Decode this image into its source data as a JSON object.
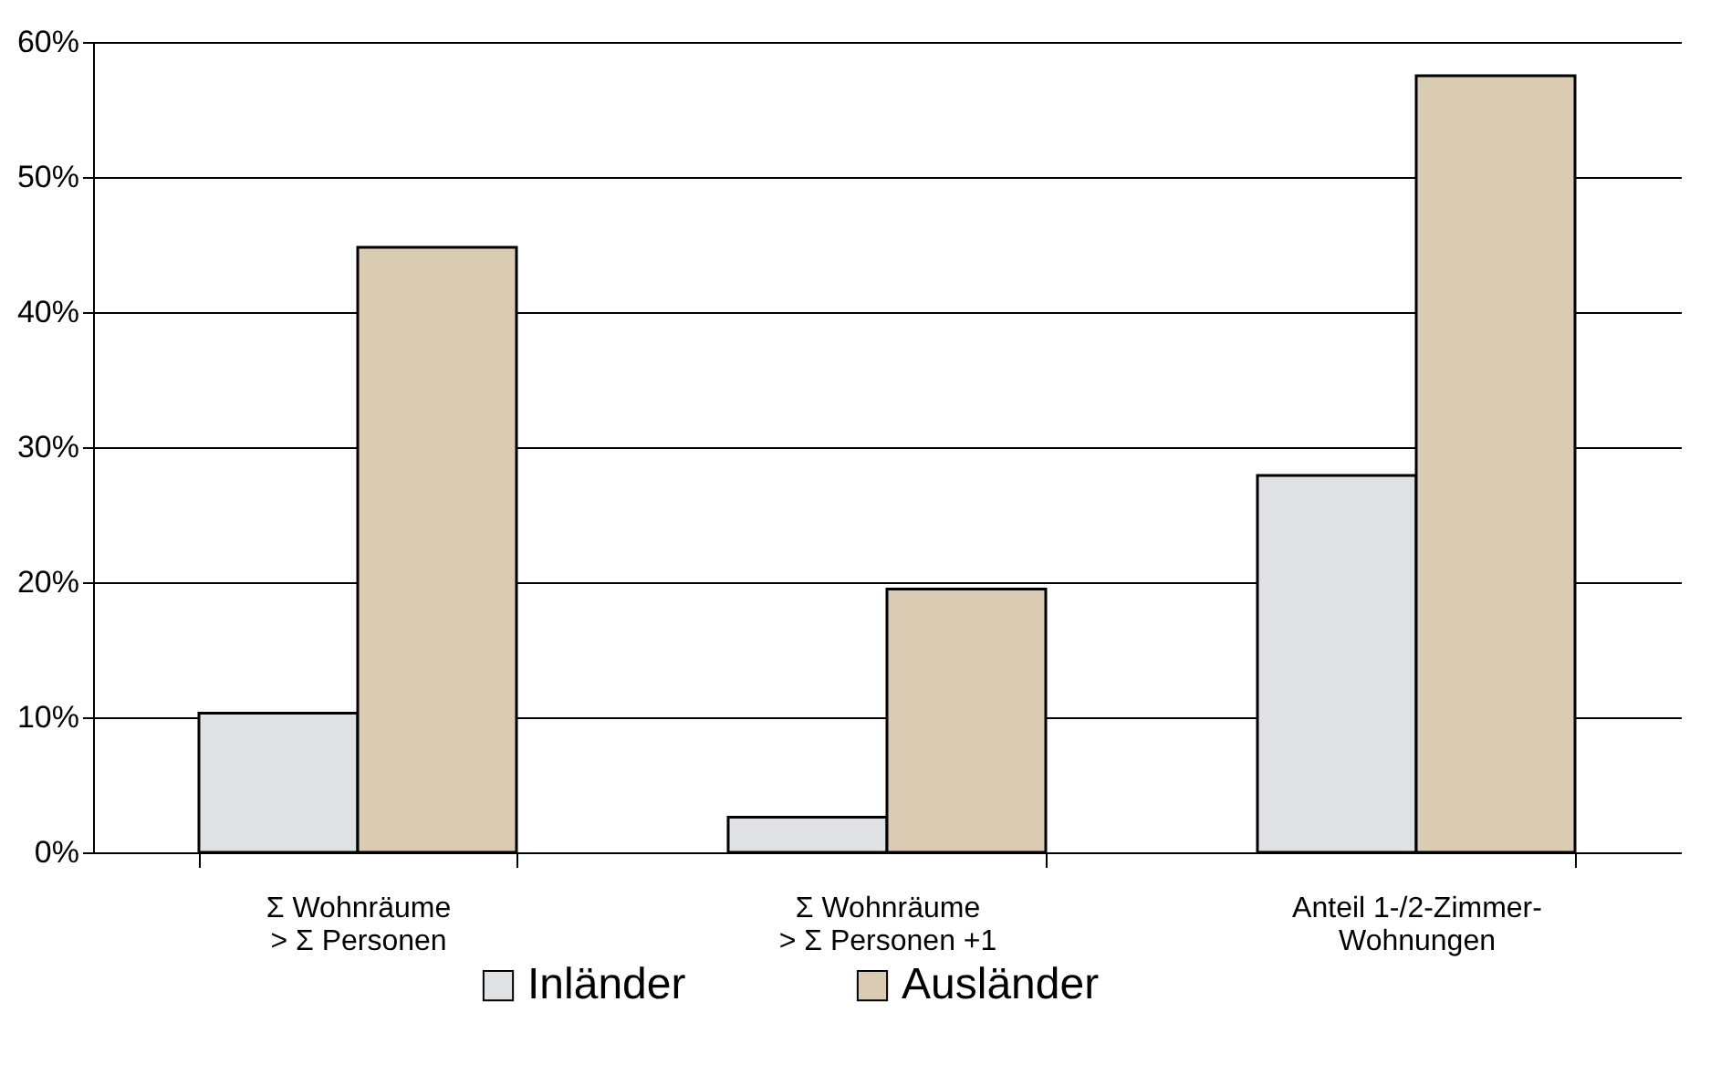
{
  "chart_data": {
    "type": "bar",
    "categories": [
      "Σ Wohnräume\n> Σ Personen",
      "Σ Wohnräume\n> Σ Personen +1",
      "Anteil 1-/2-Zimmer-\nWohnungen"
    ],
    "series": [
      {
        "name": "Inländer",
        "color": "#dfe1e3",
        "values": [
          10.3,
          2.6,
          27.9
        ]
      },
      {
        "name": "Ausländer",
        "color": "#d9ccb2",
        "values": [
          44.8,
          19.5,
          57.5
        ]
      }
    ],
    "ylim": [
      0,
      60
    ],
    "yticks": [
      {
        "value": 0,
        "label": "0%"
      },
      {
        "value": 10,
        "label": "10%"
      },
      {
        "value": 20,
        "label": "20%"
      },
      {
        "value": 30,
        "label": "30%"
      },
      {
        "value": 40,
        "label": "40%"
      },
      {
        "value": 50,
        "label": "50%"
      },
      {
        "value": 60,
        "label": "60%"
      }
    ],
    "grid": "y",
    "legend": "bottom"
  }
}
